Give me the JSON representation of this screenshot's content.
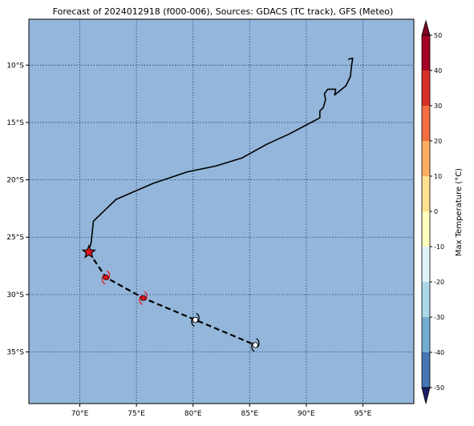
{
  "title": "Forecast of 2024012918 (f000-006), Sources: GDACS (TC track), GFS (Meteo)",
  "map": {
    "lon_range": [
      65.5,
      99.5
    ],
    "lat_range": [
      -39.5,
      -6
    ],
    "background_color": "#93b6da",
    "grid": "dotted",
    "x_ticks": [
      70,
      75,
      80,
      85,
      90,
      95
    ],
    "x_tick_labels": [
      "70°E",
      "75°E",
      "80°E",
      "85°E",
      "90°E",
      "95°E"
    ],
    "y_ticks": [
      -10,
      -15,
      -20,
      -25,
      -30,
      -35
    ],
    "y_tick_labels": [
      "10°S",
      "15°S",
      "20°S",
      "25°S",
      "30°S",
      "35°S"
    ],
    "coastline": [
      [
        93.7,
        -9.5
      ],
      [
        94.1,
        -9.4
      ],
      [
        94.0,
        -10.0
      ],
      [
        93.9,
        -11.0
      ],
      [
        93.5,
        -11.8
      ],
      [
        92.5,
        -12.6
      ],
      [
        92.6,
        -12.1
      ],
      [
        91.9,
        -12.1
      ],
      [
        91.6,
        -12.5
      ],
      [
        91.7,
        -13.0
      ],
      [
        91.5,
        -13.7
      ],
      [
        91.2,
        -14.0
      ],
      [
        91.2,
        -14.6
      ],
      [
        88.5,
        -16.0
      ],
      [
        86.5,
        -16.9
      ],
      [
        84.3,
        -18.1
      ],
      [
        82.0,
        -18.8
      ],
      [
        79.5,
        -19.3
      ],
      [
        76.5,
        -20.3
      ],
      [
        73.2,
        -21.7
      ],
      [
        71.2,
        -23.6
      ],
      [
        71.0,
        -25.5
      ],
      [
        70.7,
        -26.4
      ]
    ],
    "forecast_track": [
      {
        "lon": 70.8,
        "lat": -26.3,
        "marker": "star",
        "color": "#e8141c"
      },
      {
        "lon": 72.3,
        "lat": -28.5,
        "marker": "cyclone",
        "color": "#e8141c"
      },
      {
        "lon": 75.6,
        "lat": -30.3,
        "marker": "cyclone",
        "color": "#e8141c"
      },
      {
        "lon": 80.2,
        "lat": -32.2,
        "marker": "cyclone",
        "color": "#ffffff"
      },
      {
        "lon": 85.5,
        "lat": -34.4,
        "marker": "cyclone",
        "color": "#ffffff"
      }
    ]
  },
  "colorbar": {
    "label": "Max Temperature (°C)",
    "min": -50,
    "max": 50,
    "ticks": [
      50,
      40,
      30,
      20,
      10,
      0,
      -10,
      -20,
      -30,
      -40,
      -50
    ],
    "colors": [
      "#313695",
      "#4575b4",
      "#74add1",
      "#abd9e9",
      "#e0f3f8",
      "#ffffbf",
      "#fee090",
      "#fdae61",
      "#f46d43",
      "#d73027",
      "#a50026"
    ],
    "extend_min_color": "#1a1f6b",
    "extend_max_color": "#800026"
  }
}
